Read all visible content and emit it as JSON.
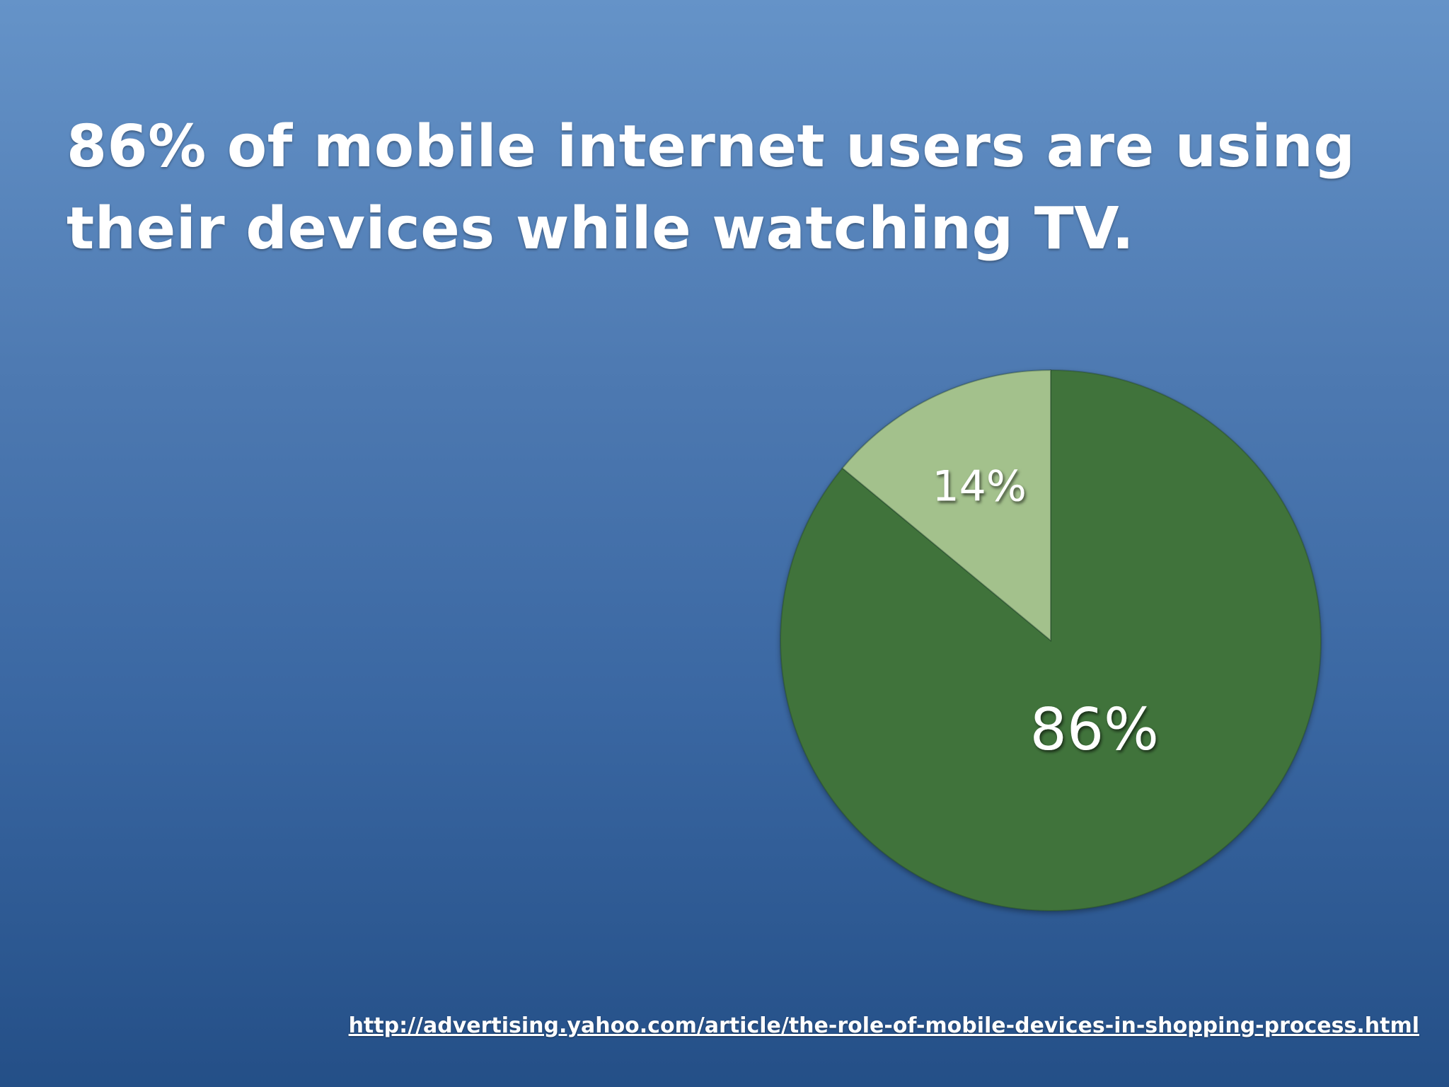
{
  "slide": {
    "title_lines": [
      "86% of mobile internet users are using",
      "their devices while watching TV."
    ],
    "source_url": "http://advertising.yahoo.com/article/the-role-of-mobile-devices-in-shopping-process.html"
  },
  "colors": {
    "background_top": "#6593c8",
    "background_bottom": "#244f87",
    "slice_large": "#41733a",
    "slice_small": "#a3c18c",
    "text": "#ffffff"
  },
  "chart_data": {
    "type": "pie",
    "title": "",
    "slices": [
      {
        "label": "86%",
        "value": 86,
        "color": "#41733a"
      },
      {
        "label": "14%",
        "value": 14,
        "color": "#a3c18c"
      }
    ]
  }
}
